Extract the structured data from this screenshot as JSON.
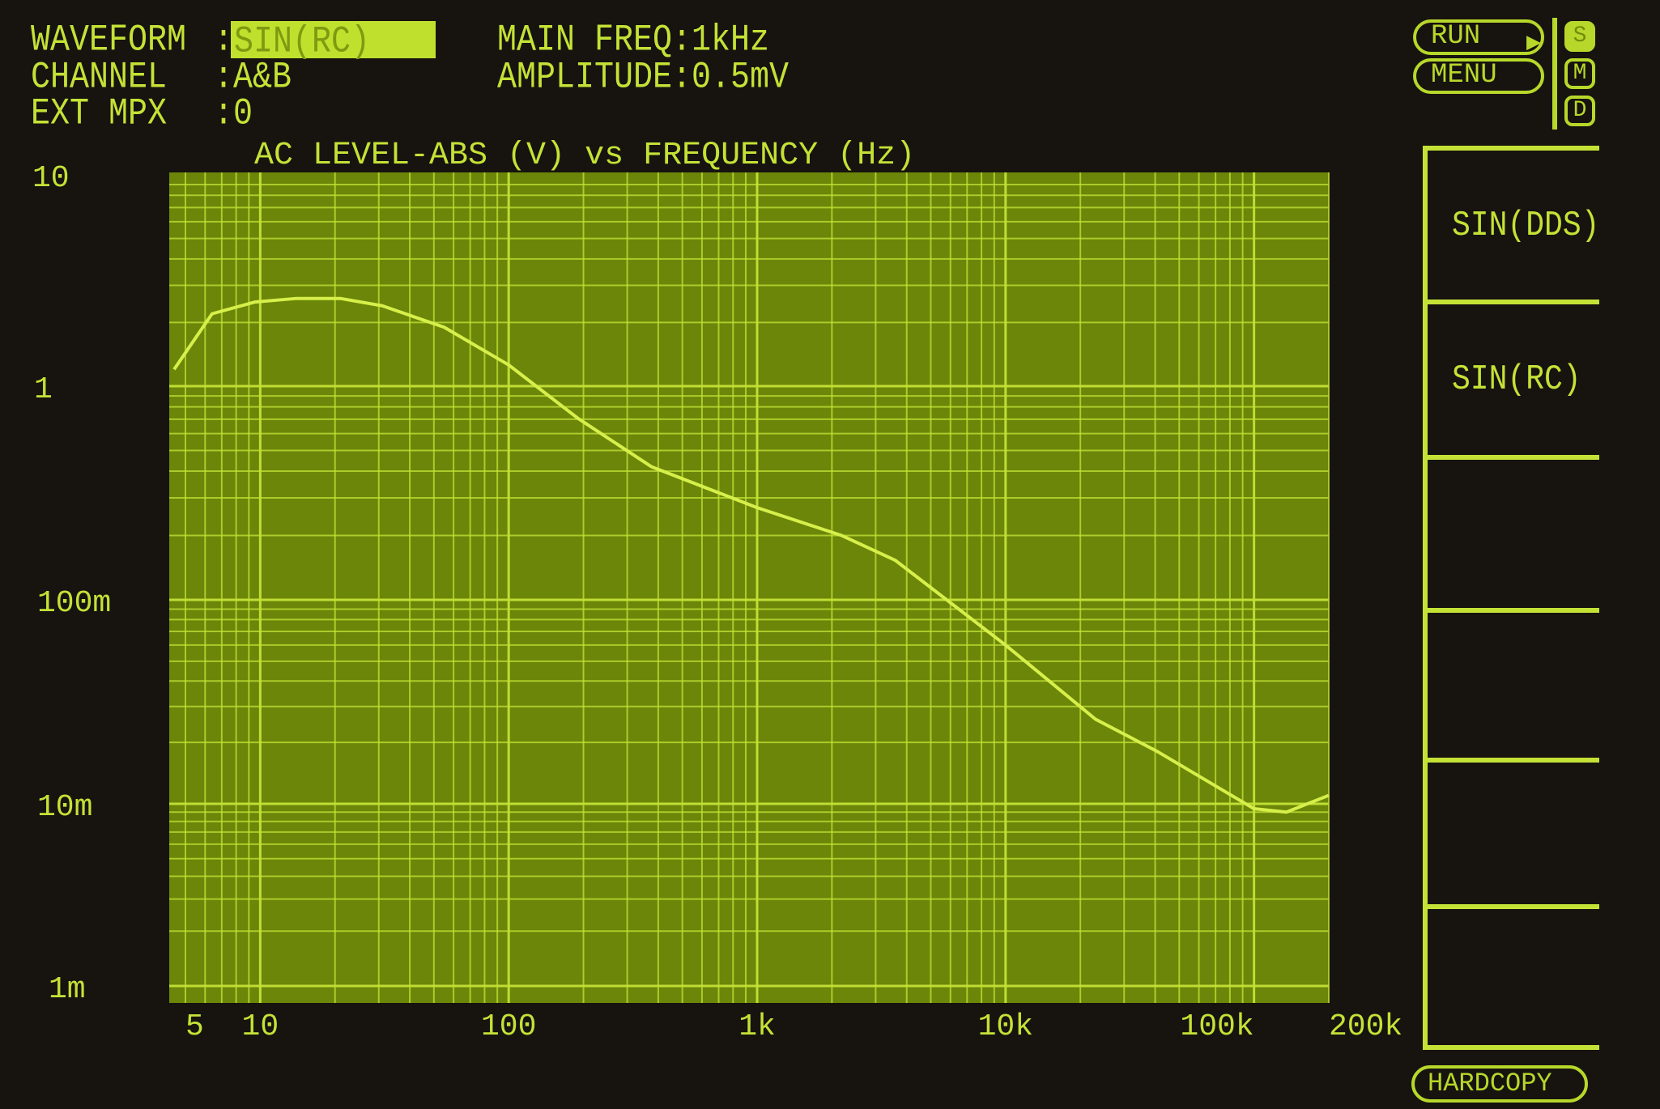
{
  "header": {
    "waveform_label": "WAVEFORM",
    "waveform_value": "SIN(RC)",
    "channel_label": "CHANNEL",
    "channel_value": ":A&B",
    "ext_mpx_label": "EXT MPX",
    "ext_mpx_value": ":0",
    "colon": ":",
    "main_freq": "MAIN FREQ:1kHz",
    "amplitude": "AMPLITUDE:0.5mV"
  },
  "controls": {
    "run_label": "RUN",
    "menu_label": "MENU",
    "mode_buttons": [
      {
        "label": "S",
        "active": true
      },
      {
        "label": "M",
        "active": false
      },
      {
        "label": "D",
        "active": false
      }
    ],
    "hardcopy_label": "HARDCOPY"
  },
  "softkeys": [
    {
      "label": "SIN(DDS)"
    },
    {
      "label": "SIN(RC)"
    },
    {
      "label": ""
    },
    {
      "label": ""
    },
    {
      "label": ""
    },
    {
      "label": ""
    }
  ],
  "colors": {
    "background": "#17130f",
    "plot_area": "#6b8608",
    "grid": "#c4e236",
    "trace": "#d6ef4a",
    "text": "#c4e236"
  },
  "chart_data": {
    "type": "line",
    "title": "AC LEVEL-ABS (V) vs FREQUENCY (Hz)",
    "x_scale": "log",
    "y_scale": "log",
    "xlim": [
      5,
      200000
    ],
    "ylim": [
      0.001,
      10
    ],
    "grid": true,
    "x_ticks": [
      {
        "value": 5,
        "label": "5"
      },
      {
        "value": 10,
        "label": "10"
      },
      {
        "value": 100,
        "label": "100"
      },
      {
        "value": 1000,
        "label": "1k"
      },
      {
        "value": 10000,
        "label": "10k"
      },
      {
        "value": 100000,
        "label": "100k"
      },
      {
        "value": 200000,
        "label": "200k"
      }
    ],
    "y_ticks": [
      {
        "value": 10,
        "label": "10"
      },
      {
        "value": 1,
        "label": "1"
      },
      {
        "value": 0.1,
        "label": "100m"
      },
      {
        "value": 0.01,
        "label": "10m"
      },
      {
        "value": 0.001,
        "label": "1m"
      }
    ],
    "series": [
      {
        "x": [
          4.5,
          6.4,
          9.5,
          14,
          21,
          31,
          55,
          100,
          189,
          375,
          1000,
          2190,
          3600,
          10000,
          23000,
          41000,
          100000,
          135000,
          200000
        ],
        "y": [
          1.2,
          2.2,
          2.5,
          2.6,
          2.6,
          2.4,
          1.9,
          1.26,
          0.71,
          0.42,
          0.27,
          0.2,
          0.153,
          0.06,
          0.026,
          0.018,
          0.0094,
          0.009,
          0.011
        ]
      }
    ]
  }
}
